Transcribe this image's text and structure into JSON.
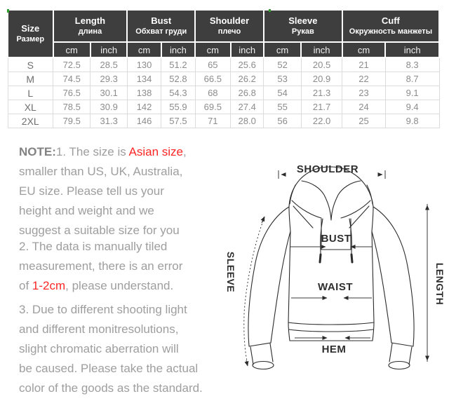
{
  "colors": {
    "header_bg": "#3e3e3e",
    "accent_red": "#fd2626",
    "note_gray": "#9e9e9e",
    "table_border": "#dcdcdc",
    "line_art": "#2b2b2b",
    "artifact_green": "#2f9e2f"
  },
  "table": {
    "size_header": {
      "en": "Size",
      "ru": "Размер"
    },
    "columns": [
      {
        "en": "Length",
        "ru": "длина"
      },
      {
        "en": "Bust",
        "ru": "Обхват груди"
      },
      {
        "en": "Shoulder",
        "ru": "плечо"
      },
      {
        "en": "Sleeve",
        "ru": "Рукав"
      },
      {
        "en": "Cuff",
        "ru": "Окружность манжеты"
      }
    ],
    "units": [
      "cm",
      "inch"
    ],
    "rows": [
      {
        "size": "S",
        "values": [
          "72.5",
          "28.5",
          "130",
          "51.2",
          "65",
          "25.6",
          "52",
          "20.5",
          "21",
          "8.3"
        ]
      },
      {
        "size": "M",
        "values": [
          "74.5",
          "29.3",
          "134",
          "52.8",
          "66.5",
          "26.2",
          "53",
          "20.9",
          "22",
          "8.7"
        ]
      },
      {
        "size": "L",
        "values": [
          "76.5",
          "30.1",
          "138",
          "54.3",
          "68",
          "26.8",
          "54",
          "21.3",
          "23",
          "9.1"
        ]
      },
      {
        "size": "XL",
        "values": [
          "78.5",
          "30.9",
          "142",
          "55.9",
          "69.5",
          "27.4",
          "55",
          "21.7",
          "24",
          "9.4"
        ]
      },
      {
        "size": "2XL",
        "values": [
          "79.5",
          "31.3",
          "146",
          "57.5",
          "71",
          "28.0",
          "56",
          "22.0",
          "25",
          "9.8"
        ]
      }
    ]
  },
  "notes": {
    "paragraphs": [
      {
        "lines": [
          {
            "segments": [
              {
                "t": "NOTE:",
                "style": "bold"
              },
              {
                "t": "1. The size is "
              },
              {
                "t": "Asian size",
                "style": "red"
              },
              {
                "t": ","
              }
            ]
          },
          {
            "segments": [
              {
                "t": "smaller than US, UK, Australia,"
              }
            ]
          },
          {
            "segments": [
              {
                "t": "EU size. Please tell us your"
              }
            ]
          },
          {
            "segments": [
              {
                "t": "height and weight and we"
              }
            ]
          },
          {
            "segments": [
              {
                "t": "suggest a suitable size for you"
              }
            ]
          }
        ]
      },
      {
        "lines": [
          {
            "segments": [
              {
                "t": "2. The data is manually tiled"
              }
            ]
          },
          {
            "segments": [
              {
                "t": "measurement, there is an error"
              }
            ]
          },
          {
            "segments": [
              {
                "t": "of "
              },
              {
                "t": "1-2cm",
                "style": "red"
              },
              {
                "t": ", please understand."
              }
            ]
          }
        ]
      },
      {
        "lines": [
          {
            "segments": [
              {
                "t": "3. Due to different shooting light"
              }
            ]
          },
          {
            "segments": [
              {
                "t": "and different monitresolutions,"
              }
            ]
          },
          {
            "segments": [
              {
                "t": "slight chromatic aberration will"
              }
            ]
          },
          {
            "segments": [
              {
                "t": "be caused. Please take the actual"
              }
            ]
          },
          {
            "segments": [
              {
                "t": "color of the goods as the standard."
              }
            ]
          }
        ]
      }
    ]
  },
  "diagram": {
    "labels": {
      "shoulder": "SHOULDER",
      "bust": "BUST",
      "waist": "WAIST",
      "hem": "HEM",
      "sleeve": "SLEEVE",
      "length": "LENGTH"
    }
  }
}
